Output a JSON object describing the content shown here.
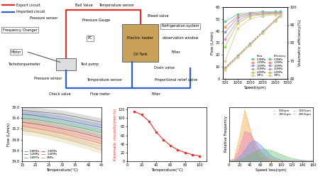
{
  "diagram": {
    "labels": [
      "Export circuit",
      "Imported circuit",
      "Frequency Changer",
      "Motor",
      "Tachotorquemeter",
      "Test pump",
      "Check valve",
      "Pressure sensor",
      "Flow meter",
      "Temperature sensor",
      "Filter",
      "Proportional relief valve",
      "Pressure sensor",
      "Ball Valve",
      "Temperature sensor",
      "Pressure Gauge",
      "PC",
      "Bleed valve",
      "Refrigeration system",
      "observation window",
      "Electric heater",
      "Oil Tank",
      "Drain valve",
      "Filter"
    ]
  },
  "chart_data": [
    {
      "type": "line",
      "x_label": "Speed(rpm)",
      "y_label": "Flow (L/min)",
      "y2_label": "Volumetric efficiency(%)",
      "x": [
        500,
        1000,
        1500,
        2000,
        2500,
        2700
      ],
      "xlim": [
        400,
        3000
      ],
      "xticks": [
        500,
        1000,
        1500,
        2000,
        2500,
        3000
      ],
      "ylim": [
        0,
        60
      ],
      "yticks": [
        0,
        10,
        20,
        30,
        40,
        50,
        60
      ],
      "y2lim": [
        60,
        100
      ],
      "y2ticks": [
        60,
        70,
        80,
        90,
        100
      ],
      "legend": "lower right",
      "legend_columns": [
        "Flow",
        "Efficiency"
      ],
      "series": [
        {
          "name": "0.8MPa",
          "color": "#66c2a5",
          "line_style": "dashed",
          "marker": "circle",
          "values": [
            9.5,
            19.5,
            29.6,
            39.6,
            49.5,
            53.5
          ]
        },
        {
          "name": "1.2MPa",
          "color": "#fc8d62",
          "line_style": "dashed",
          "marker": "circle",
          "values": [
            9.2,
            19.2,
            29.3,
            39.3,
            49.2,
            53.2
          ]
        },
        {
          "name": "1.6MPa",
          "color": "#8da0cb",
          "line_style": "dashed",
          "marker": "circle",
          "values": [
            8.8,
            18.9,
            29.0,
            39.0,
            49.0,
            53.0
          ]
        },
        {
          "name": "2.0MPa",
          "color": "#e78ac3",
          "line_style": "dashed",
          "marker": "circle",
          "values": [
            8.4,
            18.6,
            28.7,
            38.8,
            48.8,
            52.8
          ]
        },
        {
          "name": "2.4MPa",
          "color": "#a6d854",
          "line_style": "dashed",
          "marker": "circle",
          "values": [
            8.0,
            18.2,
            28.4,
            38.5,
            48.5,
            52.5
          ]
        },
        {
          "name": "3MPa",
          "color": "#e5c494",
          "line_style": "dashed",
          "marker": "circle",
          "values": [
            7.2,
            17.6,
            27.9,
            38.1,
            48.1,
            52.1
          ]
        },
        {
          "name": "0.8MPa",
          "color": "#66c2a5",
          "line_style": "solid",
          "marker": "square",
          "axis": "y2",
          "values": [
            92,
            96,
            97,
            97.5,
            97.5,
            97.5
          ]
        },
        {
          "name": "1.2MPa",
          "color": "#fc8d62",
          "line_style": "solid",
          "marker": "square",
          "axis": "y2",
          "values": [
            89,
            95,
            96.5,
            97,
            97,
            97
          ]
        },
        {
          "name": "1.6MPa",
          "color": "#8da0cb",
          "line_style": "solid",
          "marker": "square",
          "axis": "y2",
          "values": [
            86,
            94,
            96,
            96.5,
            96.8,
            96.8
          ]
        },
        {
          "name": "2.0MPa",
          "color": "#e78ac3",
          "line_style": "solid",
          "marker": "square",
          "axis": "y2",
          "values": [
            82,
            92.5,
            95.5,
            96,
            96.5,
            96.5
          ]
        },
        {
          "name": "2.4MPa",
          "color": "#a6d854",
          "line_style": "solid",
          "marker": "square",
          "axis": "y2",
          "values": [
            78,
            91,
            95,
            95.8,
            96.2,
            96.2
          ]
        },
        {
          "name": "3MPa",
          "color": "#e5c494",
          "line_style": "solid",
          "marker": "square",
          "axis": "y2",
          "values": [
            70,
            88,
            93.5,
            95,
            95.8,
            95.8
          ]
        }
      ]
    },
    {
      "type": "line",
      "x_label": "Temperature(°C)",
      "y_label": "Flow (L/min)",
      "x": [
        15,
        20,
        25,
        30,
        35,
        40,
        45
      ],
      "xlim": [
        15,
        45
      ],
      "xticks": [
        15,
        20,
        25,
        30,
        35,
        40,
        45
      ],
      "ylim": [
        34,
        36
      ],
      "yticks": [
        {
          "value": 34,
          "label": "34.0"
        },
        {
          "value": 34.4,
          "label": "34.4"
        },
        {
          "value": 34.8,
          "label": "34.8"
        },
        {
          "value": 35.2,
          "label": "35.2"
        },
        {
          "value": 35.6,
          "label": "35.6"
        },
        {
          "value": 36,
          "label": "36.0"
        }
      ],
      "legend": "lower left",
      "series": [
        {
          "name": "0.8MPa",
          "color": "#7f7f7f",
          "values": [
            35.9,
            35.85,
            35.8,
            35.75,
            35.65,
            35.55,
            35.45
          ],
          "error": [
            0.15,
            0.15,
            0.15,
            0.15,
            0.15,
            0.15,
            0.15
          ]
        },
        {
          "name": "1.2MPa",
          "color": "#4c72b0",
          "values": [
            35.75,
            35.7,
            35.62,
            35.55,
            35.45,
            35.35,
            35.25
          ],
          "error": [
            0.15,
            0.15,
            0.15,
            0.15,
            0.15,
            0.15,
            0.15
          ]
        },
        {
          "name": "1.6MPa",
          "color": "#55a868",
          "values": [
            35.6,
            35.55,
            35.47,
            35.38,
            35.28,
            35.17,
            35.05
          ],
          "error": [
            0.15,
            0.15,
            0.15,
            0.15,
            0.15,
            0.15,
            0.15
          ]
        },
        {
          "name": "2.0MPa",
          "color": "#c44e52",
          "values": [
            35.45,
            35.38,
            35.3,
            35.2,
            35.1,
            34.98,
            34.85
          ],
          "error": [
            0.15,
            0.15,
            0.15,
            0.15,
            0.15,
            0.15,
            0.15
          ]
        },
        {
          "name": "2.4MPa",
          "color": "#dd8452",
          "values": [
            35.3,
            35.22,
            35.13,
            35.03,
            34.9,
            34.78,
            34.65
          ],
          "error": [
            0.15,
            0.15,
            0.15,
            0.15,
            0.15,
            0.15,
            0.15
          ]
        },
        {
          "name": "3MPa",
          "color": "#ccb974",
          "values": [
            35.15,
            35.07,
            34.97,
            34.85,
            34.72,
            34.58,
            34.42
          ],
          "error": [
            0.15,
            0.15,
            0.15,
            0.15,
            0.15,
            0.15,
            0.15
          ]
        }
      ]
    },
    {
      "type": "line",
      "x_label": "Temperature(°C)",
      "y_label": "Kinematic viscosity(mm²/s)",
      "x": [
        10,
        20,
        30,
        40,
        50,
        60,
        70,
        80,
        90,
        100
      ],
      "values": [
        115,
        108,
        93,
        68,
        50,
        36,
        26,
        20,
        15,
        12
      ],
      "color": "#e03030",
      "marker": "circle",
      "xlim": [
        0,
        110
      ],
      "xticks": [
        0,
        20,
        40,
        60,
        80,
        100
      ],
      "ylim": [
        0,
        125
      ],
      "yticks": [
        0,
        20,
        40,
        60,
        80,
        100,
        120
      ]
    },
    {
      "type": "area",
      "x_label": "Speed loss(rpm)",
      "y_label": "Relative Frequency",
      "x": [
        0,
        10,
        20,
        30,
        40,
        50,
        60,
        70,
        80,
        90,
        100,
        110,
        120,
        130,
        140,
        150,
        160
      ],
      "xlim": [
        0,
        160
      ],
      "xticks": [
        0,
        20,
        40,
        60,
        80,
        100,
        120,
        140,
        160
      ],
      "ylim": [
        0,
        1
      ],
      "tick_labels": "x",
      "legend": "upper right",
      "series": [
        {
          "name": "500rpm",
          "color": "#f0a030",
          "values": [
            0,
            0.05,
            0.45,
            0.95,
            0.6,
            0.25,
            0.08,
            0.03,
            0.01,
            0,
            0,
            0,
            0,
            0,
            0,
            0,
            0
          ]
        },
        {
          "name": "1000rpm",
          "color": "#e377c2",
          "values": [
            0,
            0.03,
            0.25,
            0.55,
            0.52,
            0.35,
            0.18,
            0.08,
            0.03,
            0.01,
            0,
            0,
            0,
            0,
            0,
            0,
            0
          ]
        },
        {
          "name": "1500rpm",
          "color": "#6495ed",
          "values": [
            0,
            0.01,
            0.08,
            0.2,
            0.35,
            0.38,
            0.3,
            0.2,
            0.1,
            0.05,
            0.02,
            0.01,
            0,
            0,
            0,
            0,
            0
          ]
        },
        {
          "name": "2000rpm",
          "color": "#66bb6a",
          "values": [
            0,
            0,
            0.02,
            0.06,
            0.12,
            0.18,
            0.22,
            0.22,
            0.2,
            0.16,
            0.12,
            0.08,
            0.05,
            0.03,
            0.015,
            0.005,
            0
          ]
        }
      ]
    }
  ]
}
